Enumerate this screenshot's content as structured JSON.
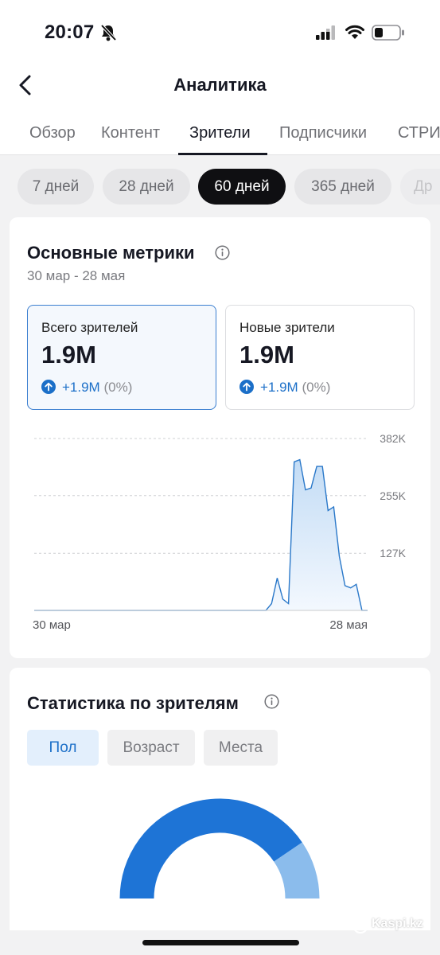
{
  "status_bar": {
    "time": "20:07"
  },
  "header": {
    "title": "Аналитика"
  },
  "tabs": [
    {
      "label": "Обзор",
      "active": false
    },
    {
      "label": "Контент",
      "active": false
    },
    {
      "label": "Зрители",
      "active": true
    },
    {
      "label": "Подписчики",
      "active": false
    },
    {
      "label": "СТРИ",
      "active": false
    }
  ],
  "periods": [
    {
      "label": "7 дней",
      "active": false
    },
    {
      "label": "28 дней",
      "active": false
    },
    {
      "label": "60 дней",
      "active": true
    },
    {
      "label": "365 дней",
      "active": false
    },
    {
      "label": "Др",
      "active": false
    }
  ],
  "metrics_card": {
    "title": "Основные метрики",
    "date_range": "30 мар - 28 мая",
    "metrics": [
      {
        "label": "Всего зрителей",
        "value": "1.9M",
        "delta": "+1.9M",
        "delta_pct": "(0%)",
        "selected": true
      },
      {
        "label": "Новые зрители",
        "value": "1.9M",
        "delta": "+1.9M",
        "delta_pct": "(0%)",
        "selected": false
      }
    ]
  },
  "chart_data": {
    "type": "area",
    "title": "",
    "xlabel": "",
    "ylabel": "",
    "x_tick_labels": [
      "30 мар",
      "28 мая"
    ],
    "y_tick_labels": [
      "127K",
      "255K",
      "382K"
    ],
    "y_ticks": [
      127000,
      255000,
      382000
    ],
    "ylim": [
      0,
      382000
    ],
    "grid": true,
    "x": [
      1,
      2,
      3,
      4,
      5,
      6,
      7,
      8,
      9,
      10,
      11,
      12,
      13,
      14,
      15,
      16,
      17,
      18,
      19,
      20,
      21,
      22,
      23,
      24,
      25,
      26,
      27,
      28,
      29,
      30,
      31,
      32,
      33,
      34,
      35,
      36,
      37,
      38,
      39,
      40,
      41,
      42,
      43,
      44,
      45,
      46,
      47,
      48,
      49,
      50,
      51,
      52,
      53,
      54,
      55,
      56,
      57,
      58,
      59,
      60
    ],
    "series": [
      {
        "values": [
          0,
          0,
          0,
          0,
          0,
          0,
          0,
          0,
          0,
          0,
          0,
          0,
          0,
          0,
          0,
          0,
          0,
          0,
          0,
          0,
          0,
          0,
          0,
          0,
          0,
          0,
          0,
          0,
          0,
          0,
          0,
          0,
          0,
          0,
          0,
          0,
          0,
          0,
          0,
          0,
          0,
          0,
          15000,
          72000,
          25000,
          15000,
          330000,
          335000,
          268000,
          272000,
          320000,
          320000,
          222000,
          230000,
          120000,
          55000,
          50000,
          58000,
          0,
          0
        ],
        "color": "#2a78c9"
      }
    ]
  },
  "audience_card": {
    "title": "Статистика по зрителям",
    "segments": [
      {
        "label": "Пол",
        "active": true
      },
      {
        "label": "Возраст",
        "active": false
      },
      {
        "label": "Места",
        "active": false
      }
    ],
    "donut": {
      "primary_fraction": 0.81,
      "primary_color": "#1e74d6",
      "secondary_color": "#8bbcec"
    }
  },
  "watermark": {
    "text": "Kaspi.kz"
  }
}
